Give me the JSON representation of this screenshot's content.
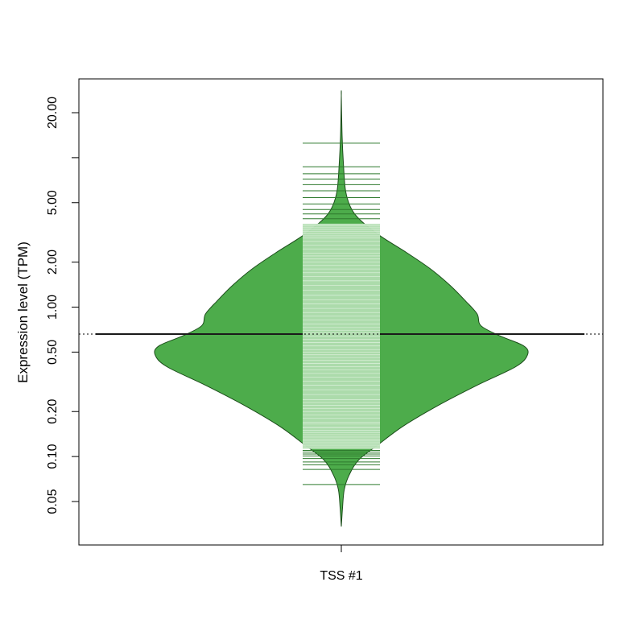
{
  "chart_data": {
    "type": "beanplot",
    "title": "",
    "xlabel": "",
    "ylabel": "Expression level (TPM)",
    "y_scale": "log",
    "ylim": [
      0.03,
      30
    ],
    "y_ticks": [
      {
        "value": 0.05,
        "label": "0.05"
      },
      {
        "value": 0.1,
        "label": "0.10"
      },
      {
        "value": 0.2,
        "label": "0.20"
      },
      {
        "value": 0.5,
        "label": "0.50"
      },
      {
        "value": 1,
        "label": "1.00"
      },
      {
        "value": 2,
        "label": "2.00"
      },
      {
        "value": 5,
        "label": "5.00"
      },
      {
        "value": 10,
        "label": ""
      },
      {
        "value": 20,
        "label": "20.00"
      }
    ],
    "categories": [
      "TSS #1"
    ],
    "overall_mean": 0.66,
    "group_mean": 0.66,
    "colors": {
      "fill": "#4dac4b",
      "outline": "#1b4d1a",
      "beanline": "#b1ddb0",
      "beanline_outer": "#2e7a2d",
      "mean_line": "#1a1a1a"
    },
    "density_profile": [
      {
        "y": 0.034,
        "width": 0.0
      },
      {
        "y": 0.045,
        "width": 0.006
      },
      {
        "y": 0.06,
        "width": 0.015
      },
      {
        "y": 0.075,
        "width": 0.04
      },
      {
        "y": 0.095,
        "width": 0.09
      },
      {
        "y": 0.12,
        "width": 0.19
      },
      {
        "y": 0.16,
        "width": 0.32
      },
      {
        "y": 0.22,
        "width": 0.5
      },
      {
        "y": 0.3,
        "width": 0.7
      },
      {
        "y": 0.4,
        "width": 0.9
      },
      {
        "y": 0.48,
        "width": 0.96
      },
      {
        "y": 0.55,
        "width": 0.94
      },
      {
        "y": 0.64,
        "width": 0.82
      },
      {
        "y": 0.75,
        "width": 0.72
      },
      {
        "y": 0.9,
        "width": 0.7
      },
      {
        "y": 1.1,
        "width": 0.64
      },
      {
        "y": 1.4,
        "width": 0.56
      },
      {
        "y": 1.8,
        "width": 0.46
      },
      {
        "y": 2.3,
        "width": 0.34
      },
      {
        "y": 3.0,
        "width": 0.2
      },
      {
        "y": 3.8,
        "width": 0.1
      },
      {
        "y": 4.6,
        "width": 0.05
      },
      {
        "y": 6.0,
        "width": 0.022
      },
      {
        "y": 9.0,
        "width": 0.011
      },
      {
        "y": 14.0,
        "width": 0.004
      },
      {
        "y": 26.0,
        "width": 0.0
      }
    ],
    "observations": [
      0.065,
      0.082,
      0.088,
      0.092,
      0.097,
      0.101,
      0.104,
      0.107,
      0.11,
      0.113,
      0.116,
      0.119,
      0.122,
      0.125,
      0.128,
      0.131,
      0.135,
      0.14,
      0.145,
      0.15,
      0.156,
      0.157,
      0.165,
      0.17,
      0.18,
      0.19,
      0.2,
      0.21,
      0.22,
      0.23,
      0.24,
      0.26,
      0.28,
      0.3,
      0.32,
      0.34,
      0.36,
      0.38,
      0.4,
      0.42,
      0.44,
      0.46,
      0.48,
      0.5,
      0.52,
      0.55,
      0.58,
      0.61,
      0.64,
      0.67,
      0.7,
      0.73,
      0.77,
      0.82,
      0.87,
      0.92,
      0.98,
      1.05,
      1.12,
      1.2,
      1.3,
      1.4,
      1.5,
      1.6,
      1.7,
      1.8,
      1.9,
      2.0,
      2.1,
      2.2,
      2.3,
      2.45,
      2.6,
      2.75,
      2.9,
      3.0,
      3.1,
      3.2,
      3.3,
      3.4,
      3.5,
      3.6,
      3.9,
      4.2,
      4.5,
      4.9,
      5.4,
      6.0,
      6.6,
      7.2,
      7.8,
      8.7,
      12.5
    ]
  }
}
